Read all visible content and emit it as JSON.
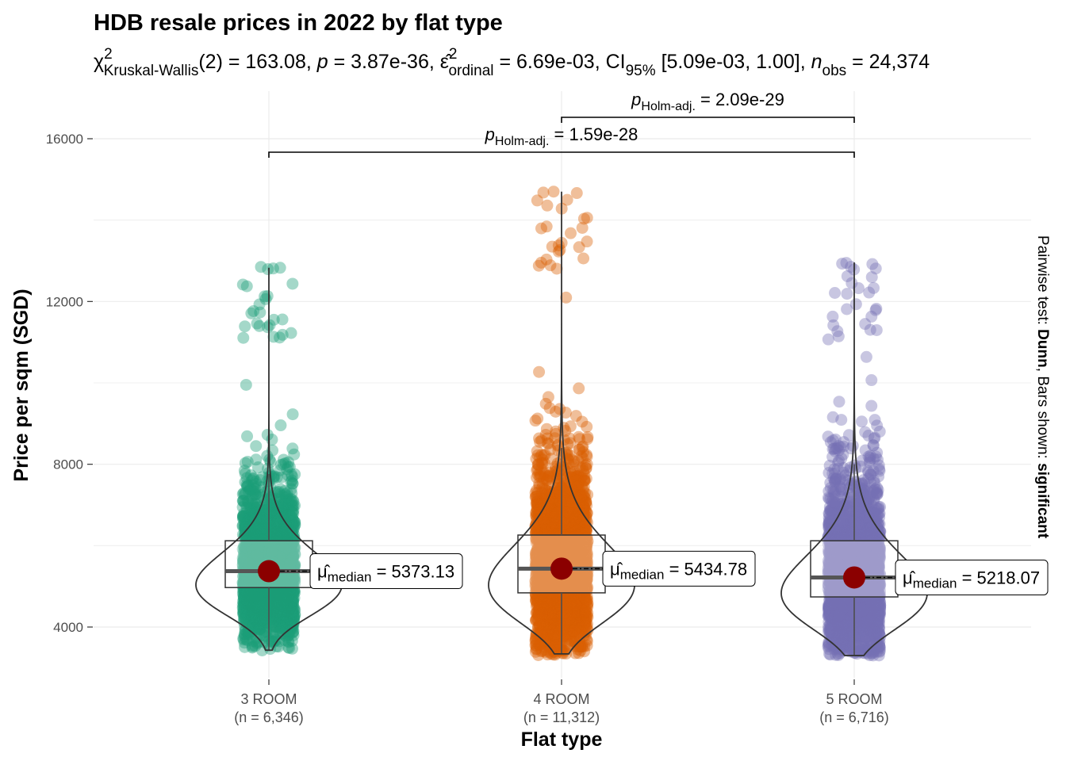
{
  "chart_data": {
    "type": "violin-box-scatter",
    "title": "HDB resale prices in 2022 by flat type",
    "subtitle_parts": [
      {
        "t": "χ",
        "s": "normal"
      },
      {
        "t": "2",
        "s": "supsub"
      },
      {
        "t": "Kruskal-Wallis",
        "s": "sub"
      },
      {
        "t": "(2) = 163.08, ",
        "s": "normal"
      },
      {
        "t": "p",
        "s": "italic"
      },
      {
        "t": " = 3.87e-36, ",
        "s": "normal"
      },
      {
        "t": "ε̂",
        "s": "normal"
      },
      {
        "t": "2",
        "s": "supsub"
      },
      {
        "t": "ordinal",
        "s": "sub"
      },
      {
        "t": " = 6.69e-03, CI",
        "s": "normal"
      },
      {
        "t": "95%",
        "s": "sub"
      },
      {
        "t": " [5.09e-03, 1.00], ",
        "s": "normal"
      },
      {
        "t": "n",
        "s": "italic"
      },
      {
        "t": "obs",
        "s": "sub"
      },
      {
        "t": " = 24,374",
        "s": "normal"
      }
    ],
    "xlabel": "Flat type",
    "ylabel": "Price per sqm (SGD)",
    "ylim": [
      3000,
      17000
    ],
    "yticks": [
      "4000",
      "8000",
      "12000",
      "16000"
    ],
    "grid": true,
    "groups": [
      {
        "name": "3 ROOM",
        "n_label": "(n = 6,346)",
        "color": "#1B9E77",
        "q1": 4970,
        "median": 5373.13,
        "q3": 6120,
        "whisker_low": 3430,
        "whisker_high": 7760,
        "min": 3400,
        "max": 12850,
        "median_label": "5373.13"
      },
      {
        "name": "4 ROOM",
        "n_label": "(n = 11,312)",
        "color": "#D95F02",
        "q1": 4840,
        "median": 5434.78,
        "q3": 6260,
        "whisker_low": 3340,
        "whisker_high": 8400,
        "min": 3300,
        "max": 14700,
        "median_label": "5434.78"
      },
      {
        "name": "5 ROOM",
        "n_label": "(n = 6,716)",
        "color": "#7570B3",
        "q1": 4740,
        "median": 5218.07,
        "q3": 6120,
        "whisker_low": 3300,
        "whisker_high": 8000,
        "min": 3300,
        "max": 12950,
        "median_label": "5218.07"
      }
    ],
    "median_point_color": "#8B0000",
    "median_label_prefix": "μ̂",
    "median_label_sub": "median",
    "median_label_eq": " = ",
    "comparisons": [
      {
        "from": "3 ROOM",
        "to": "5 ROOM",
        "p_label": "p",
        "p_sub": "Holm-adj.",
        "p_value": " = 1.59e-28"
      },
      {
        "from": "4 ROOM",
        "to": "5 ROOM",
        "p_label": "p",
        "p_sub": "Holm-adj.",
        "p_value": " = 2.09e-29"
      }
    ],
    "caption_parts": [
      {
        "t": "Pairwise test: ",
        "b": false
      },
      {
        "t": "Dunn",
        "b": true
      },
      {
        "t": ", Bars shown: ",
        "b": false
      },
      {
        "t": "significant",
        "b": true
      }
    ]
  }
}
